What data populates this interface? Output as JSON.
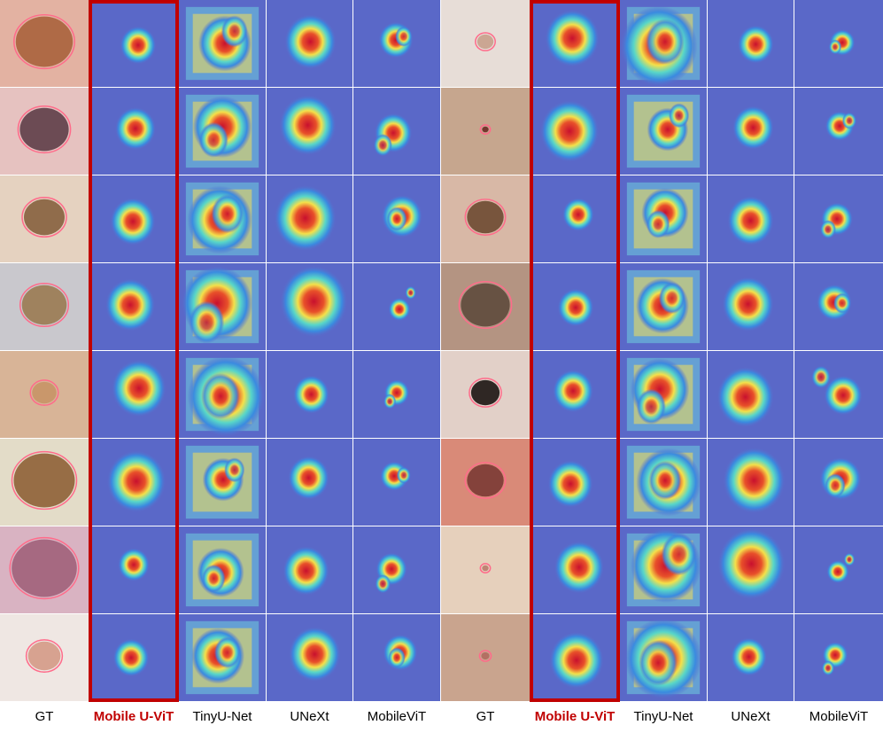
{
  "figure": {
    "highlight_color": "#c00000",
    "column_labels": [
      "GT",
      "Mobile U-ViT",
      "TinyU-Net",
      "UNeXt",
      "MobileViT",
      "GT",
      "Mobile U-ViT",
      "TinyU-Net",
      "UNeXt",
      "MobileViT"
    ],
    "column_kinds": [
      "gt",
      "heat-ours",
      "heat-tiny",
      "heat-unext",
      "heat-mvit",
      "gt",
      "heat-ours",
      "heat-tiny",
      "heat-unext",
      "heat-mvit"
    ],
    "highlighted_columns": [
      1,
      6
    ],
    "rows": 8,
    "skin_tones": [
      "#e3b2a2",
      "#e6c2c0",
      "#e5d2c0",
      "#c9c8cd",
      "#d8b497",
      "#e3dcc8",
      "#d9b3c2",
      "#efe7e3",
      "#e7ddd7",
      "#c6a68e",
      "#d8b8a6",
      "#b49482",
      "#e2d0c8",
      "#d98a78",
      "#e6d0bc",
      "#c9a48e"
    ],
    "lesion_tones": [
      "#a8623c",
      "#5e3e48",
      "#86603e",
      "#9a7a52",
      "#c89466",
      "#8e6036",
      "#a0607a",
      "#d49a86",
      "#c8a08c",
      "#6a2a24",
      "#6e4a32",
      "#5e4a3c",
      "#1c1412",
      "#7a3a34",
      "#b87a6c",
      "#b06a5e"
    ],
    "lesion_sizes": [
      0.7,
      0.6,
      0.5,
      0.55,
      0.3,
      0.75,
      0.8,
      0.4,
      0.2,
      0.08,
      0.45,
      0.6,
      0.35,
      0.45,
      0.08,
      0.1
    ],
    "mask_color": "#ff6b8a"
  }
}
